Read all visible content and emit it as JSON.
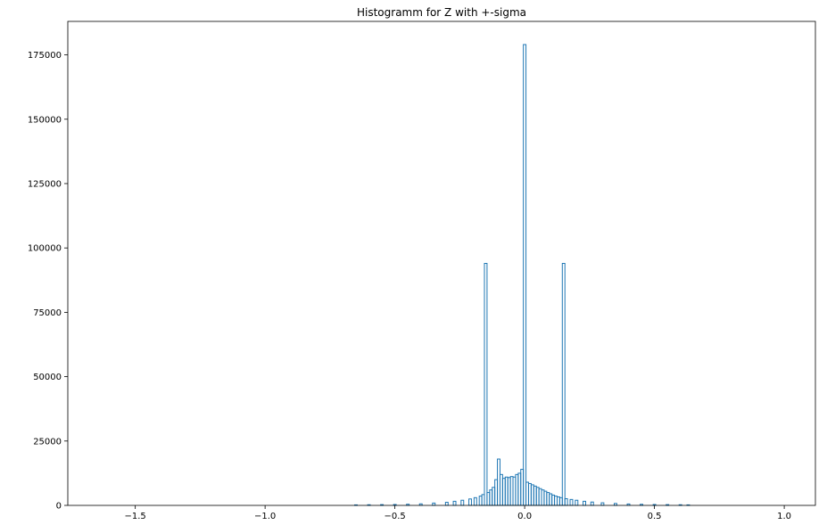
{
  "chart_data": {
    "type": "bar",
    "title": "Histogramm for Z with +-sigma",
    "xlabel": "",
    "ylabel": "",
    "xlim": [
      -1.76,
      1.12
    ],
    "ylim": [
      0,
      188000
    ],
    "x_ticks": [
      -1.5,
      -1.0,
      -0.5,
      0.0,
      0.5,
      1.0
    ],
    "x_tick_labels": [
      "−1.5",
      "−1.0",
      "−0.5",
      "0.0",
      "0.5",
      "1.0"
    ],
    "y_ticks": [
      0,
      25000,
      50000,
      75000,
      100000,
      125000,
      150000,
      175000
    ],
    "y_tick_labels": [
      "0",
      "25000",
      "50000",
      "75000",
      "100000",
      "125000",
      "150000",
      "175000"
    ],
    "grid": false,
    "style": "step",
    "colors": {
      "series": "#1f77b4",
      "axes": "#000000",
      "background": "#ffffff"
    },
    "bin_width": 0.01,
    "series": [
      {
        "values": [
          [
            -0.65,
            200
          ],
          [
            -0.6,
            250
          ],
          [
            -0.55,
            300
          ],
          [
            -0.5,
            350
          ],
          [
            -0.45,
            450
          ],
          [
            -0.4,
            600
          ],
          [
            -0.35,
            900
          ],
          [
            -0.3,
            1200
          ],
          [
            -0.27,
            1600
          ],
          [
            -0.24,
            2000
          ],
          [
            -0.21,
            2500
          ],
          [
            -0.19,
            3000
          ],
          [
            -0.17,
            3600
          ],
          [
            -0.16,
            4200
          ],
          [
            -0.15,
            94000
          ],
          [
            -0.14,
            5000
          ],
          [
            -0.13,
            6000
          ],
          [
            -0.12,
            7000
          ],
          [
            -0.11,
            10000
          ],
          [
            -0.1,
            18000
          ],
          [
            -0.09,
            12000
          ],
          [
            -0.08,
            10500
          ],
          [
            -0.07,
            11000
          ],
          [
            -0.06,
            10800
          ],
          [
            -0.05,
            11200
          ],
          [
            -0.04,
            11000
          ],
          [
            -0.03,
            12000
          ],
          [
            -0.02,
            12500
          ],
          [
            -0.01,
            14000
          ],
          [
            0.0,
            179000
          ],
          [
            0.01,
            9000
          ],
          [
            0.02,
            8500
          ],
          [
            0.03,
            8000
          ],
          [
            0.04,
            7500
          ],
          [
            0.05,
            7000
          ],
          [
            0.06,
            6500
          ],
          [
            0.07,
            6000
          ],
          [
            0.08,
            5500
          ],
          [
            0.09,
            5000
          ],
          [
            0.1,
            4500
          ],
          [
            0.11,
            4000
          ],
          [
            0.12,
            3600
          ],
          [
            0.13,
            3300
          ],
          [
            0.14,
            3000
          ],
          [
            0.15,
            94000
          ],
          [
            0.16,
            2600
          ],
          [
            0.18,
            2300
          ],
          [
            0.2,
            2000
          ],
          [
            0.23,
            1600
          ],
          [
            0.26,
            1300
          ],
          [
            0.3,
            1000
          ],
          [
            0.35,
            750
          ],
          [
            0.4,
            550
          ],
          [
            0.45,
            420
          ],
          [
            0.5,
            350
          ],
          [
            0.55,
            300
          ],
          [
            0.6,
            250
          ],
          [
            0.63,
            200
          ]
        ]
      }
    ]
  }
}
